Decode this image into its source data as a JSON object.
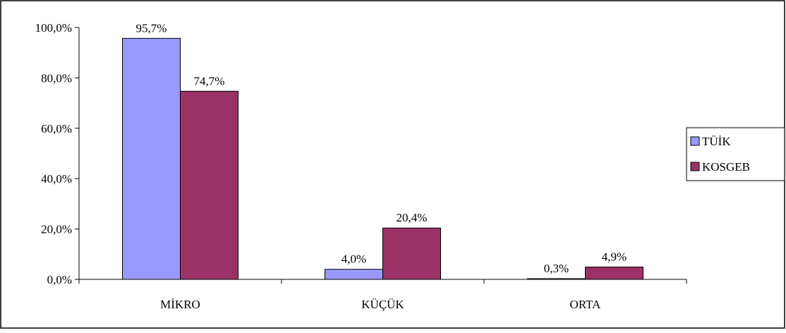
{
  "chart_data": {
    "type": "bar",
    "categories": [
      "MİKRO",
      "KÜÇÜK",
      "ORTA"
    ],
    "series": [
      {
        "name": "TÜİK",
        "color": "#9999ff",
        "values": [
          95.7,
          4.0,
          0.3
        ],
        "labels": [
          "95,7%",
          "4,0%",
          "0,3%"
        ]
      },
      {
        "name": "KOSGEB",
        "color": "#993366",
        "values": [
          74.7,
          20.4,
          4.9
        ],
        "labels": [
          "74,7%",
          "20,4%",
          "4,9%"
        ]
      }
    ],
    "yticks": [
      0,
      20,
      40,
      60,
      80,
      100
    ],
    "ytick_labels": [
      "0,0%",
      "20,0%",
      "40,0%",
      "60,0%",
      "80,0%",
      "100,0%"
    ],
    "ylim": [
      0,
      100
    ],
    "grid": false,
    "legend_position": "right"
  }
}
